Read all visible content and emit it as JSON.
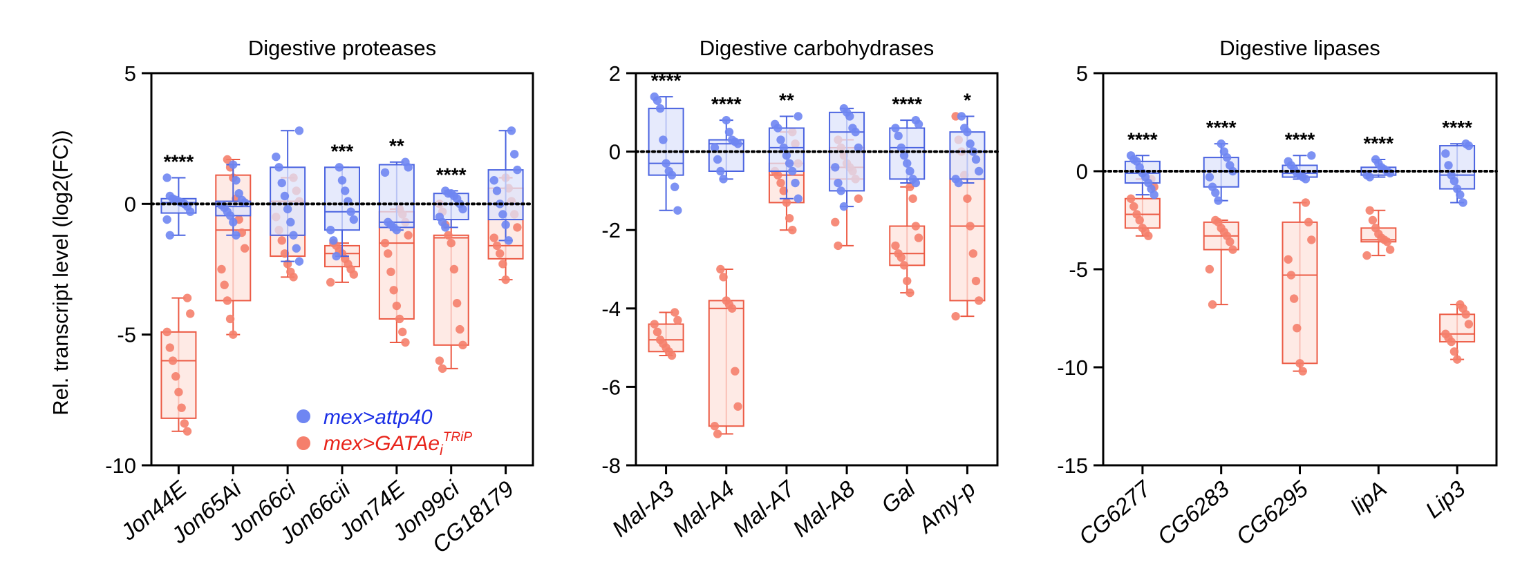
{
  "colors": {
    "control": "#6f86f2",
    "control_fill": "#dde3fb",
    "control_line": "#4a63e0",
    "knockdown": "#f57f6c",
    "knockdown_fill": "#fde3dc",
    "knockdown_line": "#ec5a44",
    "legend_control_text": "#1a2ee6",
    "legend_knockdown_text": "#e8231a"
  },
  "legend": {
    "control_label": "mex>attp40",
    "knockdown_prefix": "mex>GATAe",
    "knockdown_sub": "i",
    "knockdown_sup": "TRiP"
  },
  "ylabel": "Rel. transcript level (log2(FC))",
  "chart_data": [
    {
      "type": "box",
      "title": "Digestive proteases",
      "ylabel": "Rel. transcript level (log2(FC))",
      "ylim": [
        -10,
        5
      ],
      "yticks": [
        5,
        0,
        -5,
        -10
      ],
      "reference_line": 0,
      "categories": [
        "Jon44E",
        "Jon65Ai",
        "Jon66ci",
        "Jon66cii",
        "Jon74E",
        "Jon99ci",
        "CG18179"
      ],
      "significance": [
        "****",
        "",
        "",
        "***",
        "**",
        "****",
        ""
      ],
      "series": [
        {
          "name": "mex>attp40",
          "boxes": [
            {
              "min": -1.2,
              "q1": -0.35,
              "median": 0.05,
              "q3": 0.2,
              "max": 1.0,
              "points": [
                1.0,
                0.3,
                0.2,
                0.15,
                0.1,
                0.05,
                0.0,
                -0.1,
                -0.3,
                -0.6,
                -1.2
              ]
            },
            {
              "min": -1.2,
              "q1": -0.45,
              "median": -0.1,
              "q3": 0.1,
              "max": 1.5,
              "points": [
                1.5,
                0.9,
                0.4,
                0.15,
                0.05,
                -0.05,
                -0.15,
                -0.3,
                -0.45,
                -0.7,
                -1.2
              ]
            },
            {
              "min": -2.2,
              "q1": -1.2,
              "median": 0.0,
              "q3": 1.4,
              "max": 2.8,
              "points": [
                2.8,
                1.8,
                1.4,
                0.8,
                0.3,
                -0.2,
                -0.7,
                -1.2,
                -1.7,
                -2.2
              ]
            },
            {
              "min": -2.0,
              "q1": -1.0,
              "median": -0.3,
              "q3": 1.4,
              "max": 1.4,
              "points": [
                1.4,
                0.9,
                0.5,
                0.1,
                -0.3,
                -0.6,
                -1.0,
                -1.4,
                -2.0
              ]
            },
            {
              "min": -1.0,
              "q1": -0.9,
              "median": -0.7,
              "q3": 1.5,
              "max": 1.6,
              "points": [
                1.6,
                1.4,
                1.2,
                -0.7,
                -0.8,
                -0.9,
                -1.0
              ]
            },
            {
              "min": -0.9,
              "q1": -0.6,
              "median": 0.0,
              "q3": 0.4,
              "max": 0.5,
              "points": [
                0.5,
                0.4,
                0.4,
                0.3,
                0.2,
                0.0,
                -0.2,
                -0.5,
                -0.7,
                -0.9
              ]
            },
            {
              "min": -1.4,
              "q1": -0.6,
              "median": 0.0,
              "q3": 1.3,
              "max": 2.8,
              "points": [
                2.8,
                1.9,
                1.3,
                0.9,
                0.5,
                0.0,
                -0.4,
                -0.8,
                -1.4
              ]
            }
          ]
        },
        {
          "name": "mex>GATAei TRiP",
          "boxes": [
            {
              "min": -8.7,
              "q1": -8.2,
              "median": -6.0,
              "q3": -4.9,
              "max": -3.6,
              "points": [
                -3.6,
                -4.2,
                -4.9,
                -5.5,
                -6.0,
                -6.6,
                -7.2,
                -7.8,
                -8.4,
                -8.7
              ]
            },
            {
              "min": -5.0,
              "q1": -3.7,
              "median": -1.0,
              "q3": 1.1,
              "max": 1.7,
              "points": [
                1.7,
                1.4,
                1.0,
                0.2,
                -0.6,
                -1.1,
                -1.7,
                -2.5,
                -3.1,
                -3.7,
                -4.4,
                -5.0
              ]
            },
            {
              "min": -2.8,
              "q1": -2.0,
              "median": -1.2,
              "q3": 0.1,
              "max": 1.0,
              "points": [
                1.0,
                0.5,
                0.1,
                -0.5,
                -1.0,
                -1.4,
                -1.9,
                -2.3,
                -2.6,
                -2.8
              ]
            },
            {
              "min": -3.0,
              "q1": -2.4,
              "median": -1.9,
              "q3": -1.6,
              "max": -1.5,
              "points": [
                -1.5,
                -1.6,
                -1.8,
                -1.9,
                -2.1,
                -2.3,
                -2.5,
                -2.7,
                -3.0
              ]
            },
            {
              "min": -5.3,
              "q1": -4.4,
              "median": -1.5,
              "q3": -0.3,
              "max": -0.2,
              "points": [
                -0.2,
                -0.4,
                -0.7,
                -1.2,
                -1.5,
                -1.9,
                -2.6,
                -3.3,
                -3.9,
                -4.4,
                -4.9,
                -5.3
              ]
            },
            {
              "min": -6.3,
              "q1": -5.4,
              "median": -1.3,
              "q3": -1.2,
              "max": 0.0,
              "points": [
                0.0,
                -0.3,
                -0.8,
                -1.2,
                -1.5,
                -2.5,
                -3.8,
                -4.8,
                -5.4,
                -6.0,
                -6.3
              ]
            },
            {
              "min": -2.9,
              "q1": -2.1,
              "median": -1.6,
              "q3": 0.6,
              "max": 1.0,
              "points": [
                1.0,
                0.6,
                0.1,
                -0.4,
                -0.9,
                -1.3,
                -1.6,
                -1.9,
                -2.3,
                -2.9
              ]
            }
          ]
        }
      ]
    },
    {
      "type": "box",
      "title": "Digestive carbohydrases",
      "ylim": [
        -8,
        2
      ],
      "yticks": [
        2,
        0,
        -2,
        -4,
        -6,
        -8
      ],
      "reference_line": 0,
      "categories": [
        "Mal-A3",
        "Mal-A4",
        "Mal-A7",
        "Mal-A8",
        "Gal",
        "Amy-p"
      ],
      "significance": [
        "****",
        "****",
        "**",
        "",
        "****",
        "*"
      ],
      "series": [
        {
          "name": "mex>attp40",
          "boxes": [
            {
              "min": -1.5,
              "q1": -0.6,
              "median": -0.3,
              "q3": 1.1,
              "max": 1.4,
              "points": [
                1.4,
                1.3,
                1.1,
                0.3,
                -0.3,
                -0.5,
                -0.6,
                -0.9,
                -1.5
              ]
            },
            {
              "min": -0.7,
              "q1": -0.5,
              "median": 0.2,
              "q3": 0.3,
              "max": 0.8,
              "points": [
                0.8,
                0.5,
                0.3,
                0.25,
                0.2,
                0.1,
                -0.2,
                -0.5,
                -0.7
              ]
            },
            {
              "min": -1.2,
              "q1": -0.5,
              "median": 0.1,
              "q3": 0.6,
              "max": 0.9,
              "points": [
                0.9,
                0.7,
                0.6,
                0.3,
                0.1,
                -0.1,
                -0.3,
                -0.5,
                -0.8,
                -1.2
              ]
            },
            {
              "min": -1.4,
              "q1": -1.0,
              "median": 0.5,
              "q3": 1.0,
              "max": 1.1,
              "points": [
                1.1,
                1.0,
                0.9,
                0.6,
                0.5,
                0.1,
                -0.4,
                -0.8,
                -1.0,
                -1.4
              ]
            },
            {
              "min": -0.8,
              "q1": -0.7,
              "median": 0.1,
              "q3": 0.6,
              "max": 0.8,
              "points": [
                0.8,
                0.7,
                0.6,
                0.4,
                0.1,
                -0.1,
                -0.3,
                -0.5,
                -0.7,
                -0.8
              ]
            },
            {
              "min": -0.8,
              "q1": -0.7,
              "median": 0.0,
              "q3": 0.5,
              "max": 0.9,
              "points": [
                0.9,
                0.6,
                0.5,
                0.2,
                0.0,
                -0.2,
                -0.5,
                -0.7,
                -0.8
              ]
            }
          ]
        },
        {
          "name": "mex>GATAei TRiP",
          "boxes": [
            {
              "min": -5.2,
              "q1": -5.1,
              "median": -4.8,
              "q3": -4.4,
              "max": -4.1,
              "points": [
                -4.1,
                -4.3,
                -4.4,
                -4.6,
                -4.8,
                -4.9,
                -5.0,
                -5.1,
                -5.2
              ]
            },
            {
              "min": -7.2,
              "q1": -7.0,
              "median": -4.0,
              "q3": -3.8,
              "max": -3.0,
              "points": [
                -3.0,
                -3.2,
                -3.8,
                -3.9,
                -4.0,
                -5.6,
                -6.5,
                -7.0,
                -7.2
              ]
            },
            {
              "min": -2.0,
              "q1": -1.3,
              "median": -0.6,
              "q3": -0.3,
              "max": 0.5,
              "points": [
                0.5,
                0.2,
                -0.3,
                -0.5,
                -0.6,
                -0.8,
                -1.0,
                -1.3,
                -1.7,
                -2.0
              ]
            },
            {
              "min": -2.4,
              "q1": -0.7,
              "median": -0.4,
              "q3": 0.1,
              "max": 0.3,
              "points": [
                0.3,
                0.1,
                -0.1,
                -0.3,
                -0.4,
                -0.5,
                -0.7,
                -1.2,
                -1.8,
                -2.4
              ]
            },
            {
              "min": -3.6,
              "q1": -2.9,
              "median": -2.6,
              "q3": -1.9,
              "max": -0.9,
              "points": [
                -0.9,
                -1.2,
                -1.9,
                -2.2,
                -2.4,
                -2.6,
                -2.7,
                -2.9,
                -3.3,
                -3.6
              ]
            },
            {
              "min": -4.2,
              "q1": -3.8,
              "median": -1.9,
              "q3": 0.0,
              "max": 0.9,
              "points": [
                0.9,
                0.3,
                0.0,
                -0.6,
                -1.2,
                -1.9,
                -2.6,
                -3.3,
                -3.8,
                -4.2
              ]
            }
          ]
        }
      ]
    },
    {
      "type": "box",
      "title": "Digestive lipases",
      "ylim": [
        -15,
        5
      ],
      "yticks": [
        5,
        0,
        -5,
        -10,
        -15
      ],
      "reference_line": 0,
      "categories": [
        "CG6277",
        "CG6283",
        "CG6295",
        "lipA",
        "Lip3"
      ],
      "significance": [
        "****",
        "****",
        "****",
        "****",
        "****"
      ],
      "series": [
        {
          "name": "mex>attp40",
          "boxes": [
            {
              "min": -1.2,
              "q1": -0.6,
              "median": -0.1,
              "q3": 0.5,
              "max": 0.8,
              "points": [
                0.8,
                0.6,
                0.5,
                0.2,
                -0.1,
                -0.3,
                -0.6,
                -0.9,
                -1.2
              ]
            },
            {
              "min": -1.5,
              "q1": -0.8,
              "median": 0.0,
              "q3": 0.7,
              "max": 1.4,
              "points": [
                1.4,
                1.0,
                0.7,
                0.3,
                0.0,
                -0.3,
                -0.8,
                -1.1,
                -1.5
              ]
            },
            {
              "min": -0.4,
              "q1": -0.3,
              "median": -0.1,
              "q3": 0.3,
              "max": 0.8,
              "points": [
                0.8,
                0.5,
                0.3,
                0.1,
                -0.1,
                -0.2,
                -0.3,
                -0.4
              ]
            },
            {
              "min": -0.3,
              "q1": -0.2,
              "median": 0.0,
              "q3": 0.2,
              "max": 0.6,
              "points": [
                0.6,
                0.4,
                0.2,
                0.1,
                0.0,
                -0.1,
                -0.2,
                -0.3
              ]
            },
            {
              "min": -1.6,
              "q1": -0.9,
              "median": -0.2,
              "q3": 1.3,
              "max": 1.4,
              "points": [
                1.4,
                1.3,
                0.9,
                0.3,
                -0.2,
                -0.5,
                -0.9,
                -1.2,
                -1.6
              ]
            }
          ]
        },
        {
          "name": "mex>GATAei TRiP",
          "boxes": [
            {
              "min": -3.3,
              "q1": -2.9,
              "median": -2.2,
              "q3": -1.4,
              "max": -0.4,
              "points": [
                -0.4,
                -0.8,
                -1.4,
                -1.8,
                -2.2,
                -2.5,
                -2.9,
                -3.1,
                -3.3
              ]
            },
            {
              "min": -6.8,
              "q1": -4.0,
              "median": -3.3,
              "q3": -2.6,
              "max": -2.5,
              "points": [
                -2.5,
                -2.6,
                -2.9,
                -3.1,
                -3.3,
                -3.6,
                -4.0,
                -5.0,
                -6.8
              ]
            },
            {
              "min": -10.2,
              "q1": -9.8,
              "median": -5.3,
              "q3": -2.6,
              "max": -1.6,
              "points": [
                -1.6,
                -2.6,
                -3.5,
                -4.5,
                -5.3,
                -6.5,
                -8.0,
                -9.8,
                -10.2
              ]
            },
            {
              "min": -4.3,
              "q1": -3.6,
              "median": -3.5,
              "q3": -2.9,
              "max": -2.0,
              "points": [
                -2.0,
                -2.5,
                -2.9,
                -3.2,
                -3.4,
                -3.5,
                -3.6,
                -4.0,
                -4.3
              ]
            },
            {
              "min": -9.6,
              "q1": -8.7,
              "median": -8.3,
              "q3": -7.3,
              "max": -6.8,
              "points": [
                -6.8,
                -7.0,
                -7.3,
                -7.8,
                -8.3,
                -8.5,
                -8.7,
                -9.2,
                -9.6
              ]
            }
          ]
        }
      ]
    }
  ]
}
